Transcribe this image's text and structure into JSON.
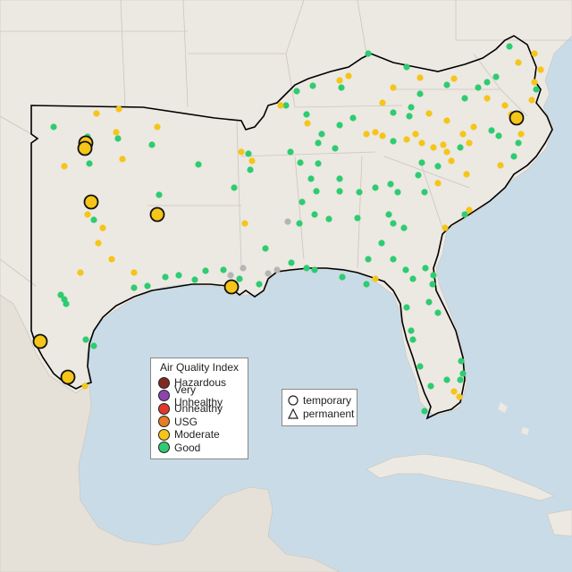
{
  "legend": {
    "title": "Air Quality Index",
    "categories": [
      {
        "label": "Hazardous",
        "color": "#7e2a22"
      },
      {
        "label": "Very Unhealthy",
        "color": "#8e44ad"
      },
      {
        "label": "Unhealthy",
        "color": "#e0392b"
      },
      {
        "label": "USG",
        "color": "#e67e22"
      },
      {
        "label": "Moderate",
        "color": "#f5c518"
      },
      {
        "label": "Good",
        "color": "#2ecc71"
      }
    ]
  },
  "site_legend": {
    "temporary": "temporary",
    "permanent": "permanent"
  },
  "colors": {
    "water": "#c9dbe6",
    "land": "#ece8e2",
    "no_data": "#b5b5b5"
  }
}
